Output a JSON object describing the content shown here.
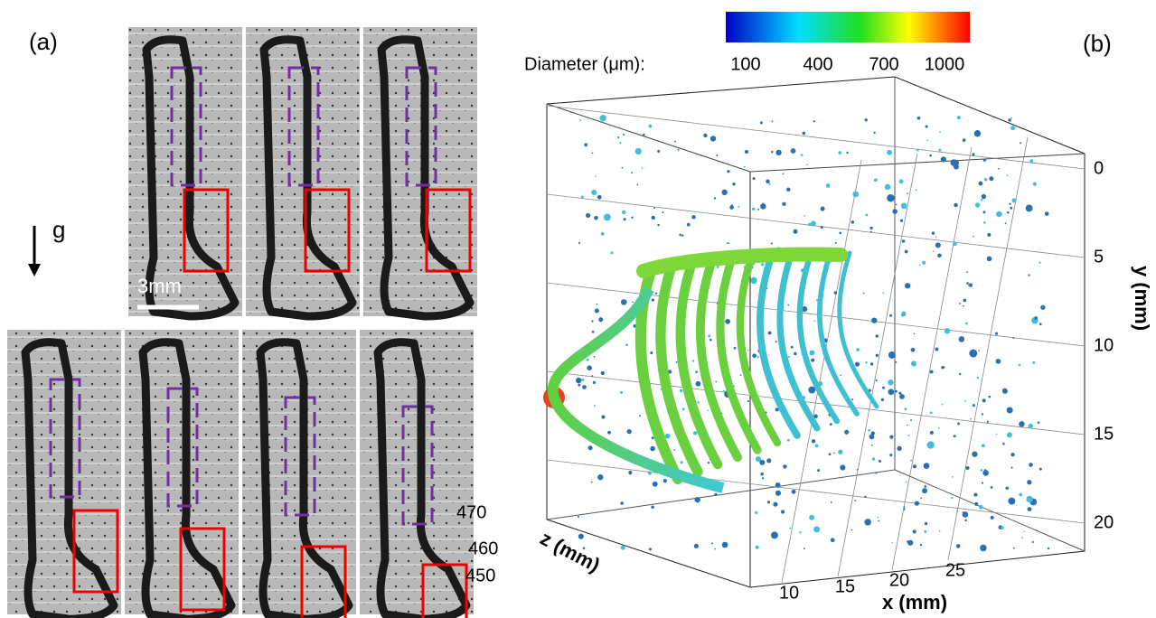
{
  "panel_a": {
    "label": "(a)",
    "gravity_label": "g",
    "scale_bar": "3mm"
  },
  "panel_b": {
    "label": "(b)",
    "colorbar": {
      "title": "Diameter (μm):",
      "ticks": [
        100,
        400,
        700,
        1000
      ]
    },
    "y_axis": {
      "label": "y (mm)",
      "ticks": [
        0,
        5,
        10,
        15,
        20
      ]
    },
    "z_axis": {
      "label": "z (mm)",
      "ticks": [
        470,
        460,
        450
      ]
    },
    "x_axis": {
      "label": "x (mm)",
      "ticks": [
        10,
        15,
        20,
        25
      ]
    }
  }
}
